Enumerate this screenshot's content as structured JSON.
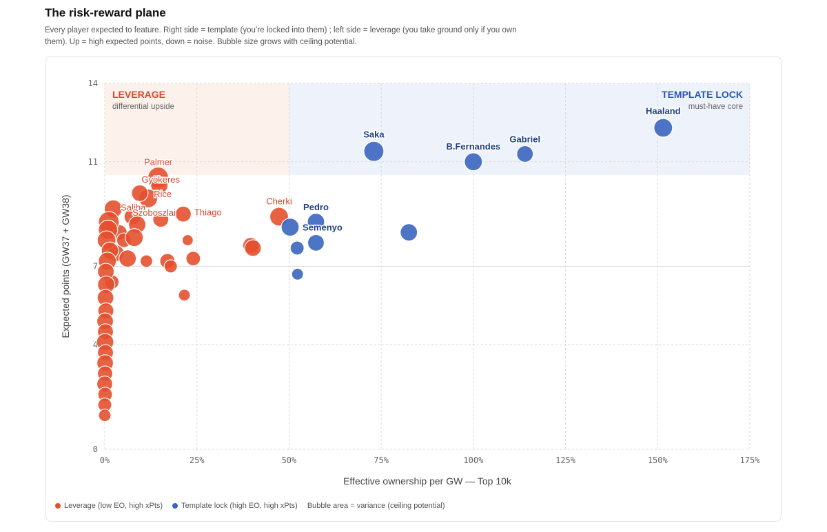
{
  "header": {
    "title": "The risk-reward plane",
    "subtitle": "Every player expected to feature. Right side = template (you’re locked into them) ; left side = leverage (you take ground only if you own them). Up = high expected points, down = noise. Bubble size grows with ceiling potential."
  },
  "colors": {
    "leverage": "#e4502f",
    "template": "#3a65bf",
    "leverage_zone": "#fdf1ec",
    "template_zone": "#eef2fa",
    "leverage_label": "#d9472a",
    "template_label": "#2d57b0"
  },
  "zones": {
    "leverage": {
      "title": "LEVERAGE",
      "subtitle": "differential upside"
    },
    "template": {
      "title": "TEMPLATE LOCK",
      "subtitle": "must-have core"
    }
  },
  "legend": {
    "leverage": "Leverage (low EO, high xPts)",
    "template": "Template lock (high EO, high xPts)",
    "note": "Bubble area = variance (ceiling potential)"
  },
  "chart_data": {
    "type": "scatter",
    "xlabel": "Effective ownership per GW — Top 10k",
    "ylabel": "Expected points (GW37 + GW38)",
    "xlim": [
      0,
      175
    ],
    "ylim": [
      0,
      14
    ],
    "x_ticks": [
      "0%",
      "25%",
      "50%",
      "75%",
      "100%",
      "125%",
      "150%",
      "175%"
    ],
    "y_ticks": [
      "0",
      "4",
      "7",
      "11",
      "14"
    ],
    "grid": true,
    "zones": [
      {
        "name": "leverage",
        "x": [
          0,
          50
        ],
        "y": [
          10.5,
          14
        ]
      },
      {
        "name": "template",
        "x": [
          50,
          175
        ],
        "y": [
          10.5,
          14
        ]
      }
    ],
    "series": [
      {
        "name": "Leverage (low EO, high xPts)",
        "points": [
          {
            "x": 14.5,
            "y": 10.4,
            "s": 2.2,
            "label": "Palmer"
          },
          {
            "x": 14.8,
            "y": 10.1,
            "s": 1.7,
            "label": "Gyökeres"
          },
          {
            "x": 11.8,
            "y": 9.6,
            "s": 1.9,
            "label": "Rice"
          },
          {
            "x": 9.5,
            "y": 9.8,
            "s": 1.6
          },
          {
            "x": 7.5,
            "y": 8.9,
            "s": 1.6,
            "label": "Saliba"
          },
          {
            "x": 2.3,
            "y": 9.2,
            "s": 1.8
          },
          {
            "x": 8.8,
            "y": 8.6,
            "s": 1.7,
            "label": "Szoboszlai"
          },
          {
            "x": 15.2,
            "y": 8.8,
            "s": 1.5
          },
          {
            "x": 21.3,
            "y": 9.0,
            "s": 1.5,
            "label": "Thiago"
          },
          {
            "x": 47.3,
            "y": 8.9,
            "s": 1.9,
            "label": "Cherki"
          },
          {
            "x": 39.6,
            "y": 7.8,
            "s": 1.5
          },
          {
            "x": 40.2,
            "y": 7.7,
            "s": 1.6
          },
          {
            "x": 22.5,
            "y": 8.0,
            "s": 0.8
          },
          {
            "x": 4.0,
            "y": 8.3,
            "s": 1.4
          },
          {
            "x": 5.2,
            "y": 8.0,
            "s": 1.3
          },
          {
            "x": 8.0,
            "y": 8.1,
            "s": 1.8
          },
          {
            "x": 3.0,
            "y": 7.5,
            "s": 1.6
          },
          {
            "x": 6.2,
            "y": 7.3,
            "s": 1.7
          },
          {
            "x": 11.3,
            "y": 7.2,
            "s": 1.0
          },
          {
            "x": 17.0,
            "y": 7.2,
            "s": 1.4
          },
          {
            "x": 17.9,
            "y": 7.0,
            "s": 1.1
          },
          {
            "x": 24.0,
            "y": 7.3,
            "s": 1.3
          },
          {
            "x": 21.6,
            "y": 5.9,
            "s": 0.9
          },
          {
            "x": 1.9,
            "y": 6.4,
            "s": 1.3
          },
          {
            "x": 1.1,
            "y": 8.7,
            "s": 2.2
          },
          {
            "x": 0.9,
            "y": 8.4,
            "s": 2.0
          },
          {
            "x": 0.5,
            "y": 8.0,
            "s": 1.9
          },
          {
            "x": 1.4,
            "y": 7.6,
            "s": 1.7
          },
          {
            "x": 0.7,
            "y": 7.2,
            "s": 1.8
          },
          {
            "x": 0.3,
            "y": 6.8,
            "s": 1.6
          },
          {
            "x": 0.4,
            "y": 6.3,
            "s": 1.7
          },
          {
            "x": 0.2,
            "y": 5.8,
            "s": 1.6
          },
          {
            "x": 0.3,
            "y": 5.3,
            "s": 1.5
          },
          {
            "x": 0.1,
            "y": 4.9,
            "s": 1.6
          },
          {
            "x": 0.2,
            "y": 4.5,
            "s": 1.5
          },
          {
            "x": 0.1,
            "y": 4.1,
            "s": 1.7
          },
          {
            "x": 0.2,
            "y": 3.7,
            "s": 1.5
          },
          {
            "x": 0.1,
            "y": 3.3,
            "s": 1.6
          },
          {
            "x": 0.1,
            "y": 2.9,
            "s": 1.4
          },
          {
            "x": 0.0,
            "y": 2.5,
            "s": 1.5
          },
          {
            "x": 0.1,
            "y": 2.1,
            "s": 1.3
          },
          {
            "x": 0.0,
            "y": 1.7,
            "s": 1.2
          },
          {
            "x": 0.0,
            "y": 1.3,
            "s": 1.0
          }
        ]
      },
      {
        "name": "Template lock (high EO, high xPts)",
        "points": [
          {
            "x": 151.5,
            "y": 12.3,
            "s": 1.9,
            "label": "Haaland"
          },
          {
            "x": 73.0,
            "y": 11.4,
            "s": 2.1,
            "label": "Saka"
          },
          {
            "x": 100.0,
            "y": 11.0,
            "s": 1.8,
            "label": "B.Fernandes"
          },
          {
            "x": 114.0,
            "y": 11.3,
            "s": 1.6,
            "label": "Gabriel"
          },
          {
            "x": 57.3,
            "y": 8.7,
            "s": 1.7,
            "label": "Pedro"
          },
          {
            "x": 50.3,
            "y": 8.5,
            "s": 1.8,
            "label": "Semenyo"
          },
          {
            "x": 82.5,
            "y": 8.3,
            "s": 1.7
          },
          {
            "x": 57.3,
            "y": 7.9,
            "s": 1.6
          },
          {
            "x": 52.2,
            "y": 7.7,
            "s": 1.2
          },
          {
            "x": 52.3,
            "y": 6.7,
            "s": 0.9
          }
        ]
      }
    ]
  }
}
